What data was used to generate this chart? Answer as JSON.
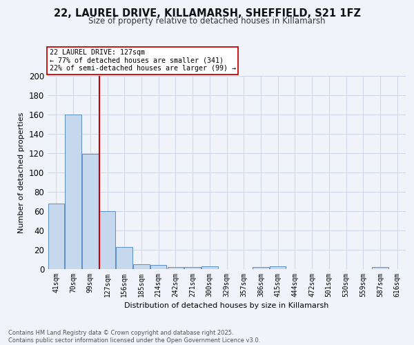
{
  "title_line1": "22, LAUREL DRIVE, KILLAMARSH, SHEFFIELD, S21 1FZ",
  "title_line2": "Size of property relative to detached houses in Killamarsh",
  "xlabel": "Distribution of detached houses by size in Killamarsh",
  "ylabel": "Number of detached properties",
  "categories": [
    "41sqm",
    "70sqm",
    "99sqm",
    "127sqm",
    "156sqm",
    "185sqm",
    "214sqm",
    "242sqm",
    "271sqm",
    "300sqm",
    "329sqm",
    "357sqm",
    "386sqm",
    "415sqm",
    "444sqm",
    "472sqm",
    "501sqm",
    "530sqm",
    "559sqm",
    "587sqm",
    "616sqm"
  ],
  "values": [
    68,
    160,
    119,
    60,
    23,
    5,
    4,
    2,
    2,
    3,
    0,
    0,
    2,
    3,
    0,
    0,
    0,
    0,
    0,
    2,
    0
  ],
  "bar_color": "#c5d8ed",
  "bar_edge_color": "#5b8fc9",
  "vline_color": "#cc0000",
  "annotation_text": "22 LAUREL DRIVE: 127sqm\n← 77% of detached houses are smaller (341)\n22% of semi-detached houses are larger (99) →",
  "annotation_box_color": "#ffffff",
  "annotation_box_edge": "#cc0000",
  "ylim": [
    0,
    200
  ],
  "yticks": [
    0,
    20,
    40,
    60,
    80,
    100,
    120,
    140,
    160,
    180,
    200
  ],
  "grid_color": "#cdd7e8",
  "footer_text": "Contains HM Land Registry data © Crown copyright and database right 2025.\nContains public sector information licensed under the Open Government Licence v3.0.",
  "bg_color": "#f0f4fa"
}
